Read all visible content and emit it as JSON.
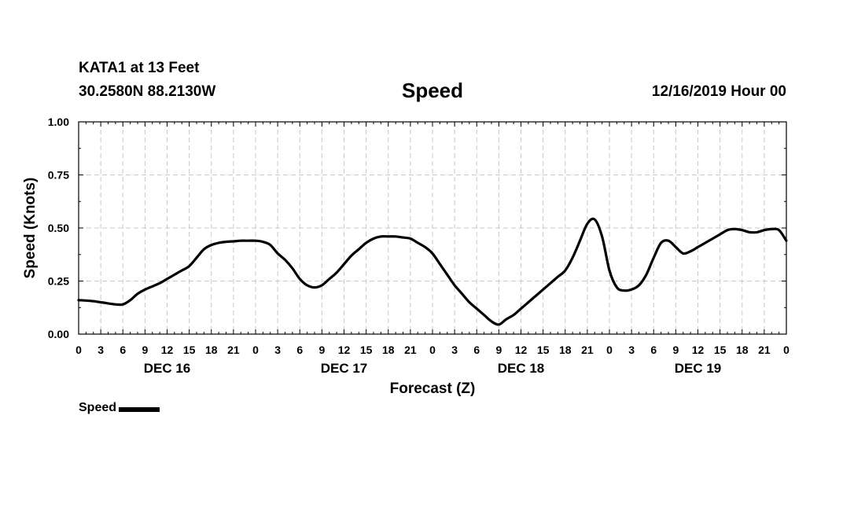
{
  "header": {
    "station": "KATA1 at 13 Feet",
    "coords": "30.2580N 88.2130W",
    "title": "Speed",
    "timestamp": "12/16/2019 Hour 00"
  },
  "legend": {
    "label": "Speed",
    "color": "#000000"
  },
  "chart_data": {
    "type": "line",
    "title": "Speed",
    "xlabel": "Forecast (Z)",
    "ylabel": "Speed (Knots)",
    "ylim": [
      0,
      1
    ],
    "yticks": [
      "0.00",
      "0.25",
      "0.50",
      "0.75",
      "1.00"
    ],
    "xlim_hours": [
      0,
      96
    ],
    "xtick_labels": [
      "0",
      "3",
      "6",
      "9",
      "12",
      "15",
      "18",
      "21",
      "0",
      "3",
      "6",
      "9",
      "12",
      "15",
      "18",
      "21",
      "0",
      "3",
      "6",
      "9",
      "12",
      "15",
      "18",
      "21",
      "0",
      "3",
      "6",
      "9",
      "12",
      "15",
      "18",
      "21",
      "0"
    ],
    "day_labels": [
      "DEC 16",
      "DEC 17",
      "DEC 18",
      "DEC 19"
    ],
    "grid": true,
    "legend_position": "bottom-left",
    "series": [
      {
        "name": "Speed",
        "color": "#000000",
        "x": [
          0,
          1,
          2,
          3,
          4,
          5,
          6,
          7,
          8,
          9,
          10,
          11,
          12,
          13,
          14,
          15,
          16,
          17,
          18,
          19,
          20,
          21,
          22,
          23,
          24,
          25,
          26,
          27,
          28,
          29,
          30,
          31,
          32,
          33,
          34,
          35,
          36,
          37,
          38,
          39,
          40,
          41,
          42,
          43,
          44,
          45,
          46,
          47,
          48,
          49,
          50,
          51,
          52,
          53,
          54,
          55,
          56,
          57,
          58,
          59,
          60,
          61,
          62,
          63,
          64,
          65,
          66,
          67,
          68,
          69,
          70,
          71,
          72,
          73,
          74,
          75,
          76,
          77,
          78,
          79,
          80,
          81,
          82,
          83,
          84,
          85,
          86,
          87,
          88,
          89,
          90,
          91,
          92,
          93,
          94,
          95,
          96
        ],
        "values": [
          0.16,
          0.158,
          0.155,
          0.15,
          0.145,
          0.14,
          0.14,
          0.16,
          0.19,
          0.21,
          0.225,
          0.24,
          0.26,
          0.28,
          0.3,
          0.32,
          0.36,
          0.4,
          0.42,
          0.43,
          0.435,
          0.437,
          0.44,
          0.44,
          0.44,
          0.435,
          0.42,
          0.38,
          0.35,
          0.31,
          0.26,
          0.23,
          0.22,
          0.23,
          0.26,
          0.29,
          0.33,
          0.37,
          0.4,
          0.43,
          0.45,
          0.46,
          0.46,
          0.46,
          0.455,
          0.45,
          0.43,
          0.41,
          0.38,
          0.33,
          0.28,
          0.23,
          0.19,
          0.15,
          0.12,
          0.09,
          0.06,
          0.045,
          0.07,
          0.09,
          0.12,
          0.15,
          0.18,
          0.21,
          0.24,
          0.27,
          0.3,
          0.36,
          0.44,
          0.52,
          0.54,
          0.46,
          0.3,
          0.22,
          0.205,
          0.21,
          0.23,
          0.28,
          0.36,
          0.43,
          0.44,
          0.41,
          0.38,
          0.39,
          0.41,
          0.43,
          0.45,
          0.47,
          0.49,
          0.495,
          0.49,
          0.48,
          0.48,
          0.49,
          0.495,
          0.49,
          0.44
        ]
      }
    ]
  }
}
